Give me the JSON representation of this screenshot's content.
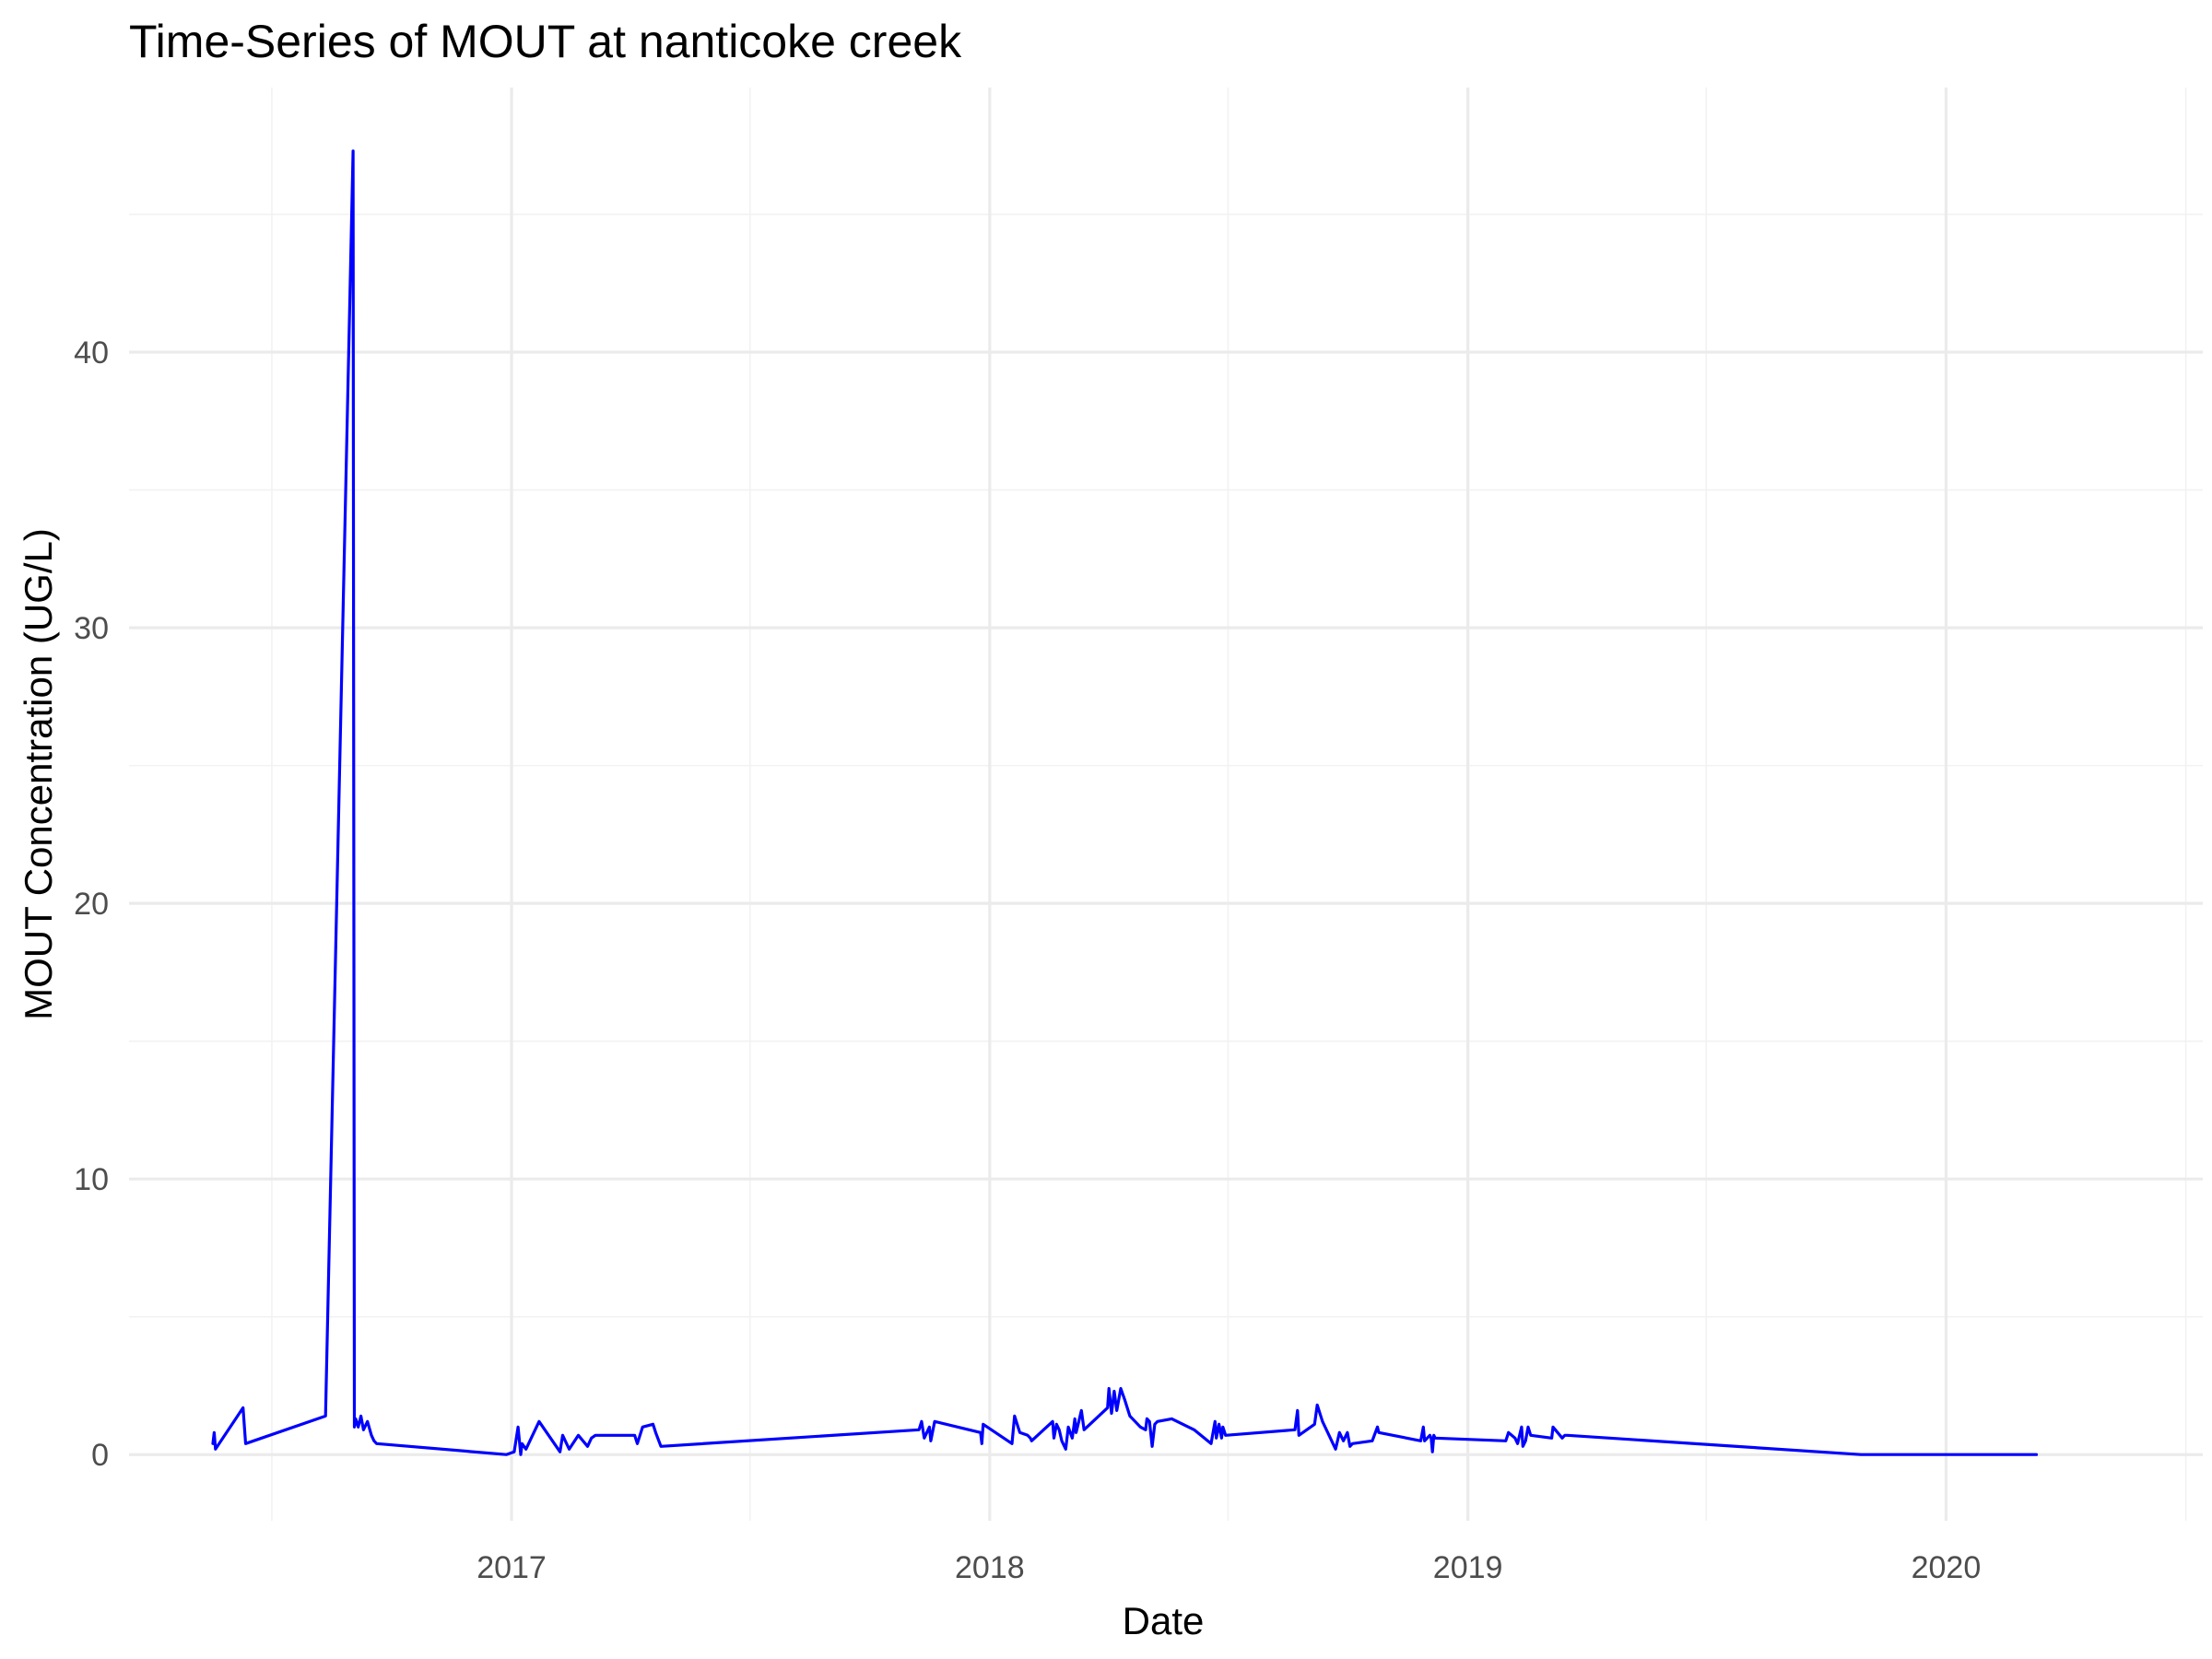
{
  "chart_data": {
    "type": "line",
    "title": "Time-Series of MOUT at nanticoke creek",
    "xlabel": "Date",
    "ylabel": "MOUT Concentration (UG/L)",
    "xlim": [
      "2016-03-15",
      "2020-07-15"
    ],
    "ylim": [
      -2.4,
      49.6
    ],
    "x_ticks": [
      "2017-01-01",
      "2018-01-01",
      "2019-01-01",
      "2020-01-01"
    ],
    "x_tick_labels": [
      "2017",
      "2018",
      "2019",
      "2020"
    ],
    "y_ticks": [
      0,
      10,
      20,
      30,
      40
    ],
    "y_tick_labels": [
      "0",
      "10",
      "20",
      "30",
      "40"
    ],
    "grid": true,
    "legend": "none",
    "series": [
      {
        "color": "#0000ff",
        "x": [
          "2016-05-18",
          "2016-05-19",
          "2016-05-20",
          "2016-06-10",
          "2016-06-12",
          "2016-08-12",
          "2016-09-02",
          "2016-09-03",
          "2016-09-04",
          "2016-09-06",
          "2016-09-08",
          "2016-09-10",
          "2016-09-13",
          "2016-09-16",
          "2016-09-18",
          "2016-09-20",
          "2016-12-28",
          "2017-01-03",
          "2017-01-06",
          "2017-01-08",
          "2017-01-09",
          "2017-01-12",
          "2017-01-22",
          "2017-02-07",
          "2017-02-09",
          "2017-02-11",
          "2017-02-14",
          "2017-02-21",
          "2017-02-28",
          "2017-03-03",
          "2017-03-06",
          "2017-03-07",
          "2017-04-05",
          "2017-04-07",
          "2017-04-11",
          "2017-04-19",
          "2017-04-21",
          "2017-04-25",
          "2017-11-08",
          "2017-11-10",
          "2017-11-12",
          "2017-11-16",
          "2017-11-17",
          "2017-11-20",
          "2017-12-25",
          "2017-12-26",
          "2017-12-27",
          "2018-01-18",
          "2018-01-20",
          "2018-01-24",
          "2018-01-30",
          "2018-02-01",
          "2018-02-02",
          "2018-02-18",
          "2018-02-19",
          "2018-02-21",
          "2018-02-23",
          "2018-02-25",
          "2018-02-28",
          "2018-03-02",
          "2018-03-05",
          "2018-03-07",
          "2018-03-08",
          "2018-03-10",
          "2018-03-12",
          "2018-03-14",
          "2018-04-01",
          "2018-04-02",
          "2018-04-04",
          "2018-04-06",
          "2018-04-08",
          "2018-04-11",
          "2018-04-14",
          "2018-04-18",
          "2018-04-22",
          "2018-04-26",
          "2018-04-30",
          "2018-05-01",
          "2018-05-03",
          "2018-05-05",
          "2018-05-07",
          "2018-05-09",
          "2018-05-20",
          "2018-06-06",
          "2018-06-19",
          "2018-06-22",
          "2018-06-23",
          "2018-06-25",
          "2018-06-27",
          "2018-06-28",
          "2018-06-30",
          "2018-08-22",
          "2018-08-24",
          "2018-08-25",
          "2018-09-06",
          "2018-09-08",
          "2018-09-12",
          "2018-09-17",
          "2018-09-22",
          "2018-09-25",
          "2018-09-28",
          "2018-10-01",
          "2018-10-03",
          "2018-10-05",
          "2018-10-20",
          "2018-10-24",
          "2018-10-25",
          "2018-11-26",
          "2018-11-28",
          "2018-11-29",
          "2018-12-03",
          "2018-12-04",
          "2018-12-05",
          "2018-12-06",
          "2018-12-07",
          "2019-01-30",
          "2019-02-01",
          "2019-02-06",
          "2019-02-08",
          "2019-02-11",
          "2019-02-12",
          "2019-02-14",
          "2019-02-16",
          "2019-02-18",
          "2019-03-06",
          "2019-03-07",
          "2019-03-14",
          "2019-03-16",
          "2019-03-18",
          "2019-10-28",
          "2020-03-10"
        ],
        "y": [
          0.4,
          0.8,
          0.2,
          1.7,
          0.4,
          1.4,
          47.3,
          1.0,
          1.3,
          1.0,
          1.4,
          0.9,
          1.2,
          0.7,
          0.5,
          0.4,
          0.0,
          0.1,
          1.0,
          0.0,
          0.4,
          0.2,
          1.2,
          0.1,
          0.7,
          0.5,
          0.2,
          0.7,
          0.3,
          0.6,
          0.7,
          0.7,
          0.7,
          0.4,
          1.0,
          1.1,
          0.8,
          0.3,
          0.9,
          1.2,
          0.6,
          1.0,
          0.5,
          1.2,
          0.8,
          0.4,
          1.1,
          0.4,
          1.4,
          0.8,
          0.7,
          0.6,
          0.5,
          1.2,
          0.6,
          1.1,
          0.9,
          0.5,
          0.2,
          1.0,
          0.6,
          1.3,
          0.8,
          1.2,
          1.6,
          0.9,
          1.7,
          2.4,
          1.5,
          2.3,
          1.6,
          2.4,
          2.0,
          1.4,
          1.2,
          1.0,
          0.9,
          1.3,
          1.2,
          0.3,
          1.1,
          1.2,
          1.3,
          0.9,
          0.4,
          1.2,
          0.6,
          1.1,
          0.6,
          1.0,
          0.7,
          0.9,
          1.6,
          0.7,
          1.1,
          1.8,
          1.2,
          0.7,
          0.2,
          0.8,
          0.5,
          0.8,
          0.3,
          0.4,
          0.5,
          1.0,
          0.8,
          0.5,
          1.0,
          0.5,
          0.7,
          0.6,
          0.1,
          0.7,
          0.6,
          0.5,
          0.8,
          0.6,
          0.4,
          1.0,
          0.3,
          0.5,
          1.0,
          0.7,
          0.6,
          1.0,
          0.6,
          0.7,
          0.7,
          0.0,
          0.0
        ]
      }
    ]
  }
}
